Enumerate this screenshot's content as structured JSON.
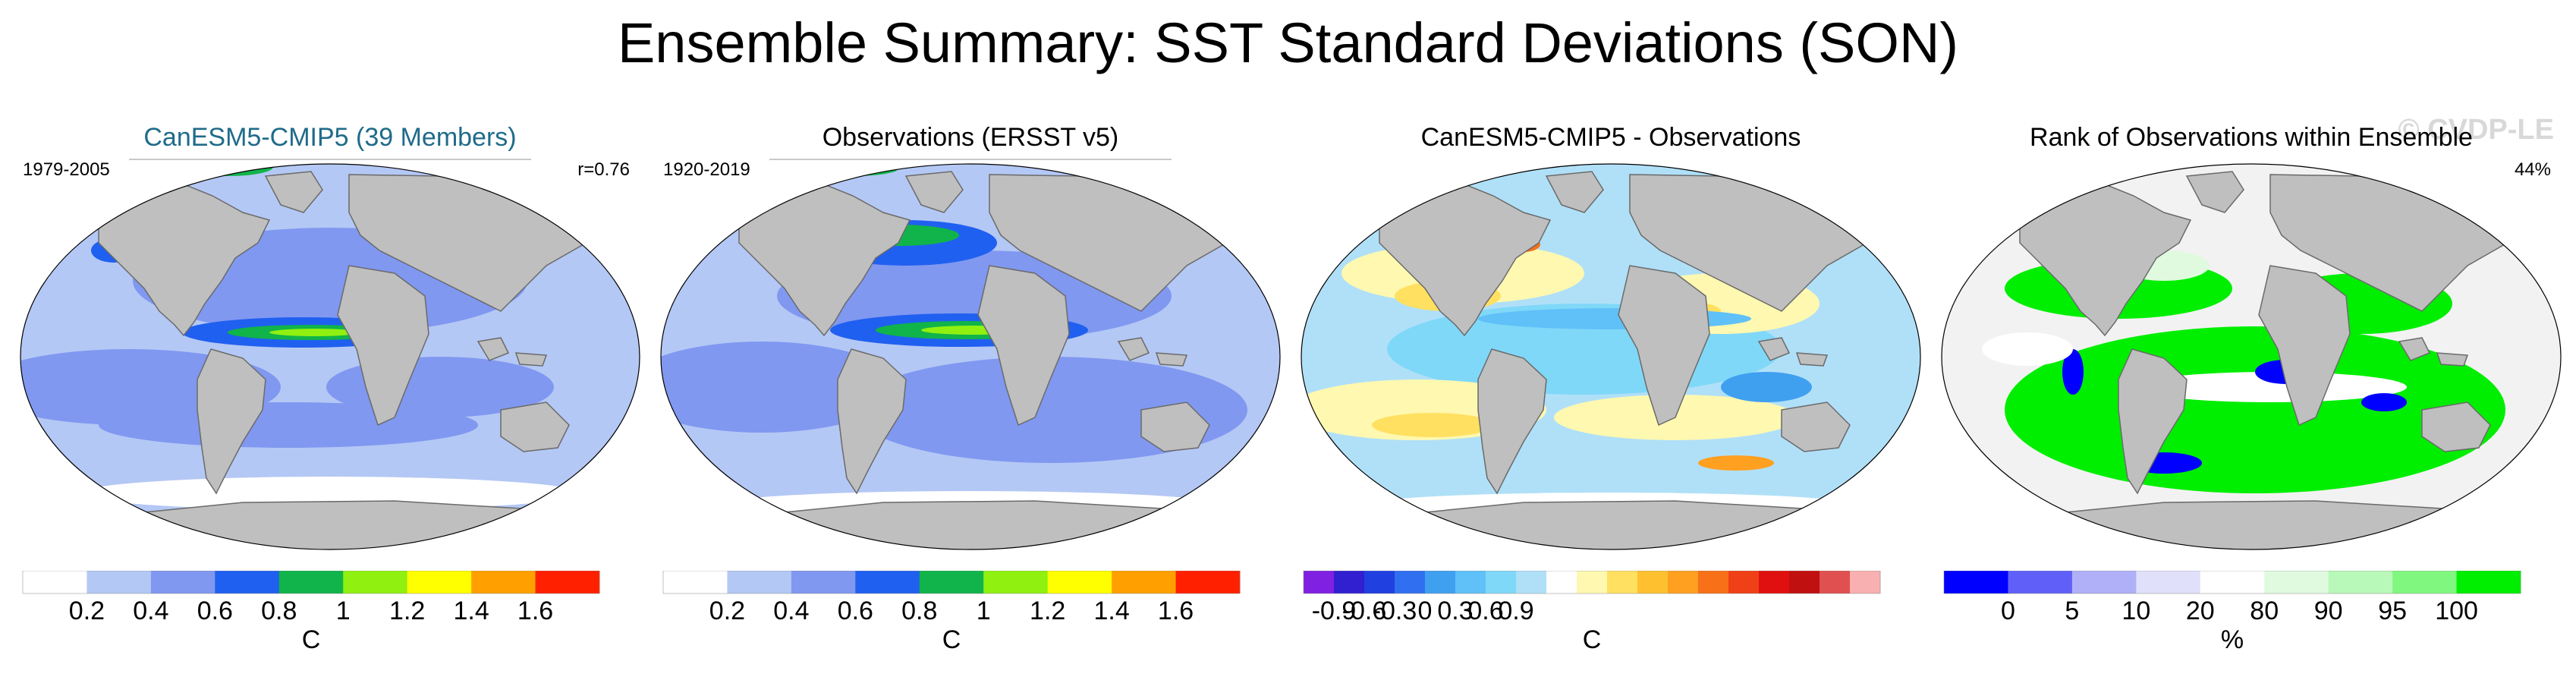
{
  "title": "Ensemble Summary: SST Standard Deviations (SON)",
  "watermark": "© CVDP-LE",
  "colors": {
    "land": "#bfbfbf",
    "coast": "#6a6a6a",
    "ocean_white": "#ffffff",
    "title_blue": "#1f6b8a"
  },
  "panels": [
    {
      "title": "CanESM5-CMIP5 (39 Members)",
      "left_note": "1979-2005",
      "right_note": "r=0.76",
      "colorbar": {
        "colors": [
          "#ffffff",
          "#b4c8f5",
          "#8098f0",
          "#2060f0",
          "#10b44a",
          "#90f010",
          "#ffff00",
          "#ffa000",
          "#ff2000"
        ],
        "labels": [
          "0.2",
          "0.4",
          "0.6",
          "0.8",
          "1",
          "1.2",
          "1.4",
          "1.6"
        ],
        "unit": "C"
      }
    },
    {
      "title": "Observations (ERSST v5)",
      "left_note": "1920-2019",
      "right_note": "",
      "colorbar": {
        "colors": [
          "#ffffff",
          "#b4c8f5",
          "#8098f0",
          "#2060f0",
          "#10b44a",
          "#90f010",
          "#ffff00",
          "#ffa000",
          "#ff2000"
        ],
        "labels": [
          "0.2",
          "0.4",
          "0.6",
          "0.8",
          "1",
          "1.2",
          "1.4",
          "1.6"
        ],
        "unit": "C"
      }
    },
    {
      "title": "CanESM5-CMIP5 - Observations",
      "left_note": "",
      "right_note": "",
      "colorbar": {
        "colors": [
          "#8020e0",
          "#3020d0",
          "#2040e0",
          "#3070f0",
          "#40a0f0",
          "#60c0f8",
          "#80d8f8",
          "#b0e0f8",
          "#ffffff",
          "#fff8b0",
          "#ffe060",
          "#ffc030",
          "#ffa020",
          "#f87018",
          "#f04018",
          "#e01010",
          "#c01010",
          "#e05050",
          "#f8b0b0"
        ],
        "labels": [
          "-0.9",
          "-0.6",
          "-0.3",
          "0",
          "0.3",
          "0.6",
          "0.9"
        ],
        "unit": "C"
      }
    },
    {
      "title": "Rank of Observations within Ensemble",
      "left_note": "",
      "right_note": "44%",
      "colorbar": {
        "colors": [
          "#0000ff",
          "#6060f8",
          "#b0b0f8",
          "#e0e0fa",
          "#ffffff",
          "#e0fae0",
          "#b8f8b8",
          "#80f880",
          "#00ee00"
        ],
        "labels": [
          "0",
          "5",
          "10",
          "20",
          "80",
          "90",
          "95",
          "100"
        ],
        "unit": "%"
      }
    }
  ]
}
